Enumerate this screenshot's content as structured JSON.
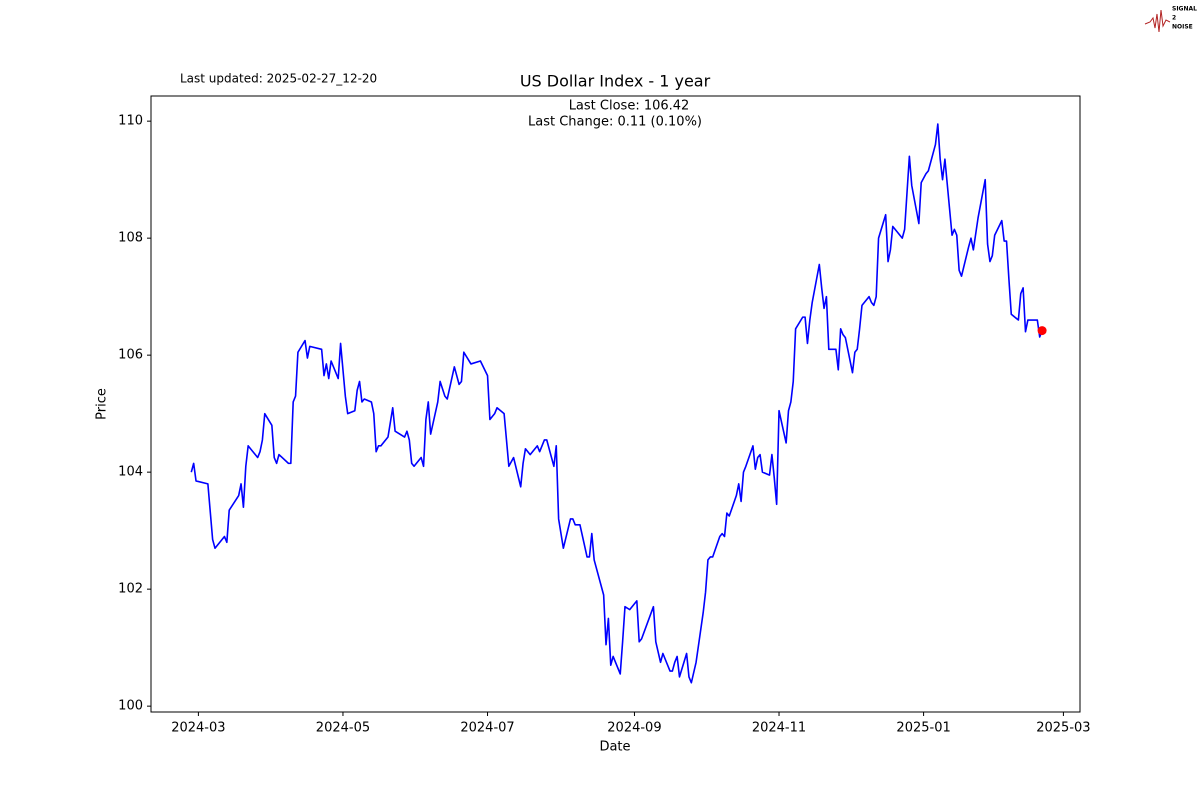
{
  "chart_data": {
    "type": "line",
    "title": "US Dollar Index - 1 year",
    "annotations": [
      "Last Close: 106.42",
      "Last Change: 0.11 (0.10%)"
    ],
    "updated": "Last updated: 2025-02-27_12-20",
    "logo": [
      "SIGNAL",
      "2",
      "NOISE"
    ],
    "xlabel": "Date",
    "ylabel": "Price",
    "xlim": [
      "2024-02-10",
      "2025-03-08"
    ],
    "xticks": [
      {
        "value": "2024-03-01",
        "label": "2024-03"
      },
      {
        "value": "2024-05-01",
        "label": "2024-05"
      },
      {
        "value": "2024-07-01",
        "label": "2024-07"
      },
      {
        "value": "2024-09-01",
        "label": "2024-09"
      },
      {
        "value": "2024-11-01",
        "label": "2024-11"
      },
      {
        "value": "2025-01-01",
        "label": "2025-01"
      },
      {
        "value": "2025-03-01",
        "label": "2025-03"
      }
    ],
    "ylim": [
      99.9,
      110.43
    ],
    "yticks": [
      100,
      102,
      104,
      106,
      108,
      110
    ],
    "last_marker_color": "#ff0000",
    "x": [
      "2024-02-27",
      "2024-02-28",
      "2024-02-29",
      "2024-03-05",
      "2024-03-07",
      "2024-03-08",
      "2024-03-12",
      "2024-03-13",
      "2024-03-14",
      "2024-03-18",
      "2024-03-19",
      "2024-03-20",
      "2024-03-21",
      "2024-03-22",
      "2024-03-26",
      "2024-03-27",
      "2024-03-28",
      "2024-03-29",
      "2024-04-01",
      "2024-04-02",
      "2024-04-03",
      "2024-04-04",
      "2024-04-08",
      "2024-04-09",
      "2024-04-10",
      "2024-04-11",
      "2024-04-12",
      "2024-04-15",
      "2024-04-16",
      "2024-04-17",
      "2024-04-22",
      "2024-04-23",
      "2024-04-24",
      "2024-04-25",
      "2024-04-26",
      "2024-04-29",
      "2024-04-30",
      "2024-05-01",
      "2024-05-02",
      "2024-05-03",
      "2024-05-06",
      "2024-05-07",
      "2024-05-08",
      "2024-05-09",
      "2024-05-10",
      "2024-05-13",
      "2024-05-14",
      "2024-05-15",
      "2024-05-16",
      "2024-05-17",
      "2024-05-20",
      "2024-05-22",
      "2024-05-23",
      "2024-05-27",
      "2024-05-28",
      "2024-05-29",
      "2024-05-30",
      "2024-05-31",
      "2024-06-03",
      "2024-06-04",
      "2024-06-05",
      "2024-06-06",
      "2024-06-07",
      "2024-06-10",
      "2024-06-11",
      "2024-06-13",
      "2024-06-14",
      "2024-06-17",
      "2024-06-19",
      "2024-06-20",
      "2024-06-21",
      "2024-06-24",
      "2024-06-28",
      "2024-07-01",
      "2024-07-02",
      "2024-07-04",
      "2024-07-05",
      "2024-07-08",
      "2024-07-09",
      "2024-07-10",
      "2024-07-12",
      "2024-07-15",
      "2024-07-16",
      "2024-07-17",
      "2024-07-19",
      "2024-07-22",
      "2024-07-23",
      "2024-07-25",
      "2024-07-26",
      "2024-07-29",
      "2024-07-30",
      "2024-07-31",
      "2024-08-02",
      "2024-08-05",
      "2024-08-06",
      "2024-08-07",
      "2024-08-09",
      "2024-08-12",
      "2024-08-13",
      "2024-08-14",
      "2024-08-15",
      "2024-08-19",
      "2024-08-20",
      "2024-08-21",
      "2024-08-22",
      "2024-08-23",
      "2024-08-26",
      "2024-08-27",
      "2024-08-28",
      "2024-08-30",
      "2024-09-02",
      "2024-09-03",
      "2024-09-04",
      "2024-09-09",
      "2024-09-10",
      "2024-09-12",
      "2024-09-13",
      "2024-09-16",
      "2024-09-17",
      "2024-09-18",
      "2024-09-19",
      "2024-09-20",
      "2024-09-23",
      "2024-09-24",
      "2024-09-25",
      "2024-09-27",
      "2024-09-30",
      "2024-10-01",
      "2024-10-02",
      "2024-10-03",
      "2024-10-04",
      "2024-10-07",
      "2024-10-08",
      "2024-10-09",
      "2024-10-10",
      "2024-10-11",
      "2024-10-14",
      "2024-10-15",
      "2024-10-16",
      "2024-10-17",
      "2024-10-18",
      "2024-10-21",
      "2024-10-22",
      "2024-10-23",
      "2024-10-24",
      "2024-10-25",
      "2024-10-28",
      "2024-10-29",
      "2024-10-30",
      "2024-10-31",
      "2024-11-01",
      "2024-11-04",
      "2024-11-05",
      "2024-11-06",
      "2024-11-07",
      "2024-11-08",
      "2024-11-11",
      "2024-11-12",
      "2024-11-13",
      "2024-11-14",
      "2024-11-15",
      "2024-11-18",
      "2024-11-19",
      "2024-11-20",
      "2024-11-21",
      "2024-11-22",
      "2024-11-25",
      "2024-11-26",
      "2024-11-27",
      "2024-11-28",
      "2024-11-29",
      "2024-12-02",
      "2024-12-03",
      "2024-12-04",
      "2024-12-05",
      "2024-12-06",
      "2024-12-09",
      "2024-12-10",
      "2024-12-11",
      "2024-12-12",
      "2024-12-13",
      "2024-12-16",
      "2024-12-17",
      "2024-12-18",
      "2024-12-19",
      "2024-12-20",
      "2024-12-23",
      "2024-12-24",
      "2024-12-26",
      "2024-12-27",
      "2024-12-30",
      "2024-12-31",
      "2025-01-02",
      "2025-01-03",
      "2025-01-06",
      "2025-01-07",
      "2025-01-08",
      "2025-01-09",
      "2025-01-10",
      "2025-01-13",
      "2025-01-14",
      "2025-01-15",
      "2025-01-16",
      "2025-01-17",
      "2025-01-20",
      "2025-01-21",
      "2025-01-22",
      "2025-01-24",
      "2025-01-27",
      "2025-01-28",
      "2025-01-29",
      "2025-01-30",
      "2025-01-31",
      "2025-02-03",
      "2025-02-04",
      "2025-02-05",
      "2025-02-06",
      "2025-02-07",
      "2025-02-10",
      "2025-02-11",
      "2025-02-12",
      "2025-02-13",
      "2025-02-14",
      "2025-02-18",
      "2025-02-19",
      "2025-02-20"
    ],
    "series": [
      {
        "name": "Price",
        "color": "#0000ff",
        "values": [
          104.0,
          104.15,
          103.85,
          103.8,
          102.85,
          102.7,
          102.9,
          102.8,
          103.35,
          103.6,
          103.8,
          103.4,
          104.1,
          104.45,
          104.25,
          104.35,
          104.55,
          105.0,
          104.8,
          104.25,
          104.15,
          104.3,
          104.15,
          104.15,
          105.2,
          105.3,
          106.05,
          106.25,
          105.95,
          106.15,
          106.1,
          105.65,
          105.85,
          105.6,
          105.9,
          105.6,
          106.2,
          105.75,
          105.3,
          105.0,
          105.05,
          105.4,
          105.55,
          105.2,
          105.25,
          105.2,
          105.0,
          104.35,
          104.45,
          104.45,
          104.6,
          105.1,
          104.7,
          104.6,
          104.7,
          104.55,
          104.15,
          104.1,
          104.25,
          104.1,
          104.9,
          105.2,
          104.65,
          105.2,
          105.55,
          105.3,
          105.25,
          105.8,
          105.5,
          105.55,
          106.05,
          105.85,
          105.9,
          105.65,
          104.9,
          105.0,
          105.1,
          105.0,
          104.55,
          104.1,
          104.25,
          103.75,
          104.15,
          104.4,
          104.3,
          104.45,
          104.35,
          104.55,
          104.55,
          104.1,
          104.45,
          103.2,
          102.7,
          103.2,
          103.2,
          103.1,
          103.1,
          102.55,
          102.55,
          102.95,
          102.5,
          101.9,
          101.05,
          101.5,
          100.7,
          100.85,
          100.55,
          101.1,
          101.7,
          101.65,
          101.8,
          101.1,
          101.15,
          101.7,
          101.1,
          100.75,
          100.9,
          100.6,
          100.6,
          100.75,
          100.85,
          100.5,
          100.9,
          100.5,
          100.4,
          100.75,
          101.6,
          101.95,
          102.5,
          102.55,
          102.55,
          102.9,
          102.95,
          102.9,
          103.3,
          103.25,
          103.6,
          103.8,
          103.5,
          104.0,
          104.1,
          104.45,
          104.05,
          104.25,
          104.3,
          104.0,
          103.95,
          104.3,
          103.9,
          103.45,
          105.05,
          104.5,
          105.05,
          105.2,
          105.55,
          106.45,
          106.65,
          106.65,
          106.2,
          106.6,
          106.9,
          107.55,
          107.15,
          106.8,
          107.0,
          106.1,
          106.1,
          105.75,
          106.45,
          106.35,
          106.3,
          105.7,
          106.05,
          106.1,
          106.45,
          106.85,
          107.0,
          106.9,
          106.85,
          107.0,
          108.0,
          108.4,
          107.6,
          107.8,
          108.2,
          108.15,
          108.0,
          108.15,
          109.4,
          108.9,
          108.25,
          108.95,
          109.1,
          109.15,
          109.6,
          109.95,
          109.35,
          109.0,
          109.35,
          108.05,
          108.15,
          108.05,
          107.45,
          107.35,
          107.85,
          108.0,
          107.8,
          108.35,
          109.0,
          107.9,
          107.6,
          107.7,
          108.05,
          108.3,
          107.95,
          107.95,
          107.3,
          106.7,
          106.6,
          107.05,
          107.15,
          106.4,
          106.6,
          106.6,
          106.31,
          106.42
        ]
      }
    ]
  }
}
